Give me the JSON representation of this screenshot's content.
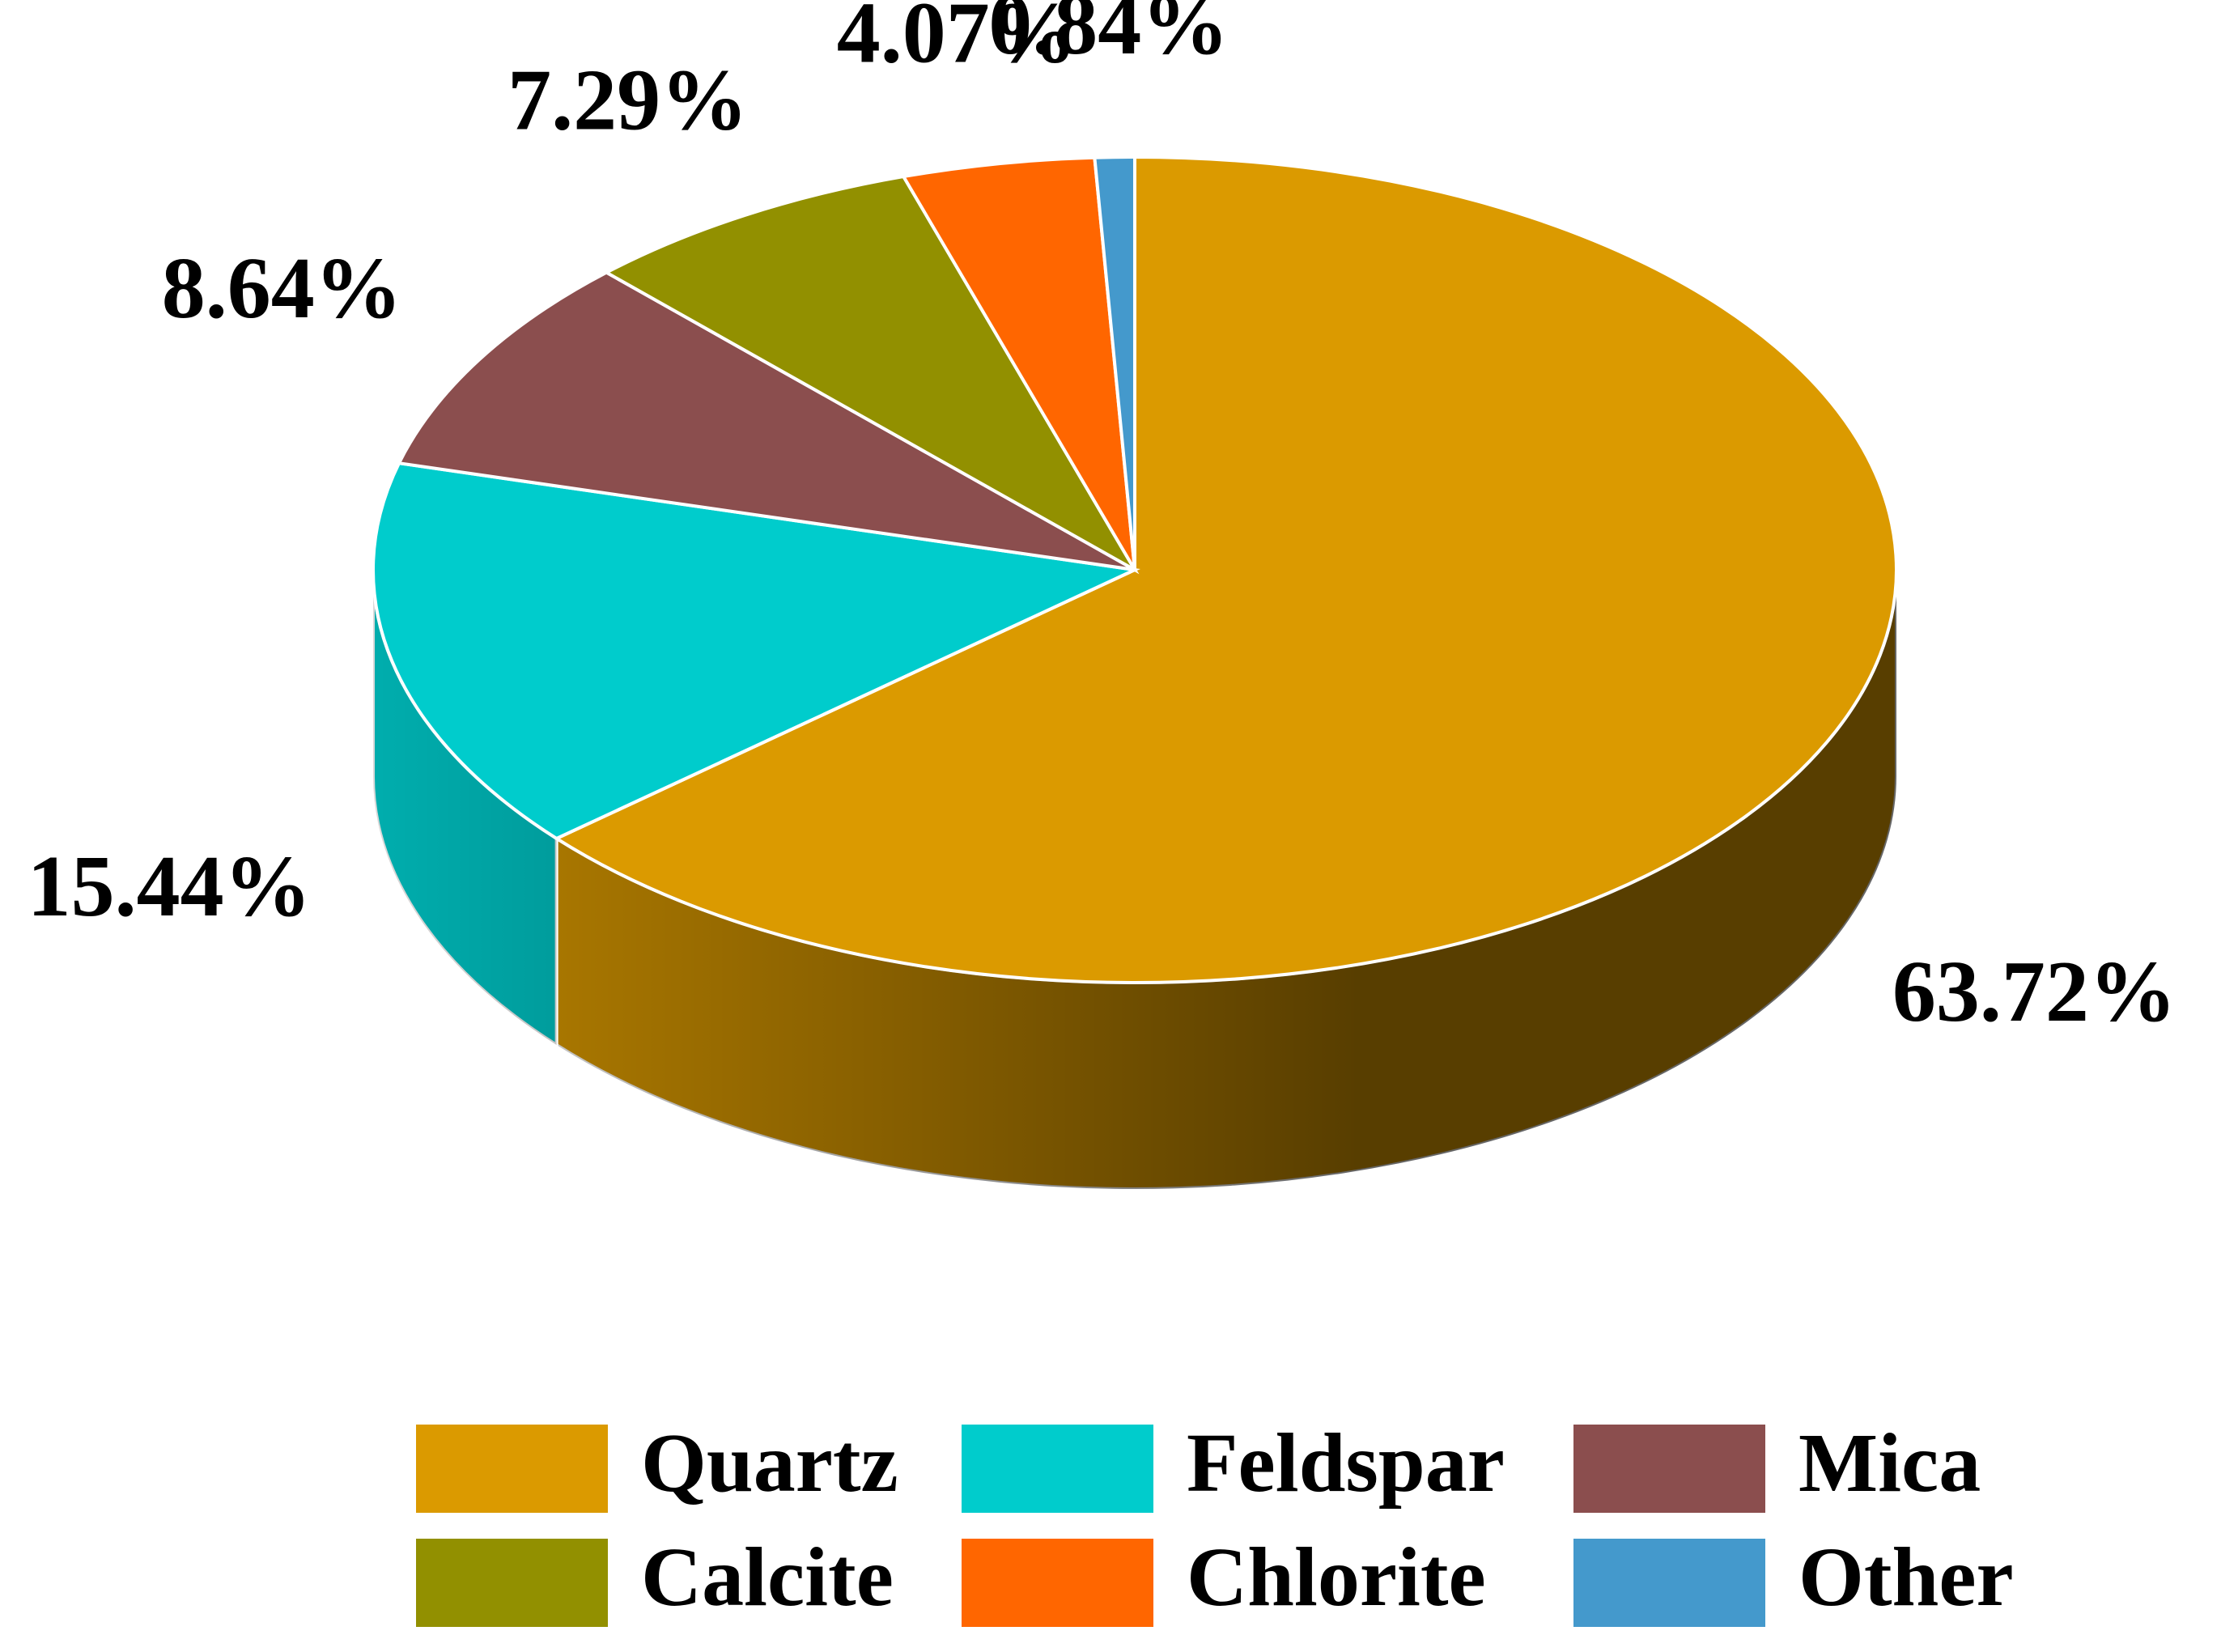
{
  "chart_data": {
    "type": "pie",
    "categories": [
      "Quartz",
      "Feldspar",
      "Mica",
      "Calcite",
      "Chlorite",
      "Other"
    ],
    "values": [
      63.72,
      15.44,
      8.64,
      7.29,
      4.07,
      0.84
    ],
    "value_labels": [
      "63.72%",
      "15.44%",
      "8.64%",
      "7.29%",
      "4.07%",
      "0.84%"
    ],
    "colors": [
      "#db9a00",
      "#00cccc",
      "#8b4e4e",
      "#929000",
      "#ff6600",
      "#4499cc"
    ],
    "legend": "bottom"
  }
}
